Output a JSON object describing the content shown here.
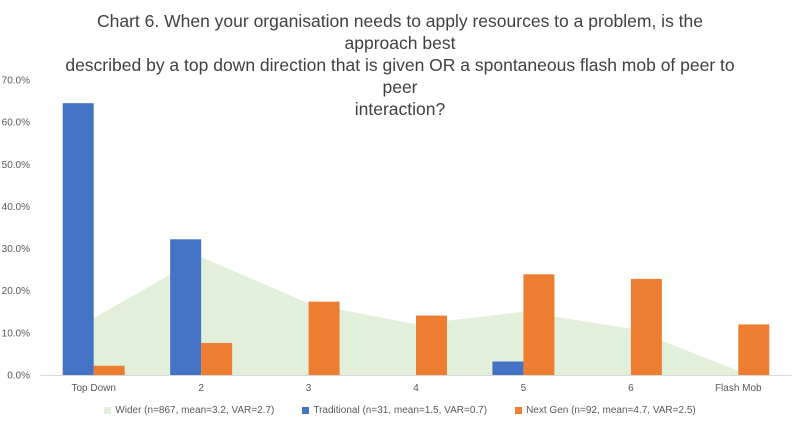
{
  "chart_data": {
    "type": "bar",
    "title": "Chart 6. When your organisation needs to apply resources to a problem, is the approach best described by a top down direction that is given OR a spontaneous flash mob of peer to peer interaction?",
    "title_lines": [
      "Chart 6. When your organisation needs to apply resources to a problem, is the approach best",
      "described by a top down direction that is given OR a spontaneous flash mob of peer to peer",
      "interaction?"
    ],
    "categories": [
      "Top Down",
      "2",
      "3",
      "4",
      "5",
      "6",
      "Flash Mob"
    ],
    "ylim": [
      0,
      70
    ],
    "yticks": [
      0,
      10,
      20,
      30,
      40,
      50,
      60,
      70
    ],
    "ytick_labels": [
      "0.0%",
      "10.0%",
      "20.0%",
      "30.0%",
      "40.0%",
      "50.0%",
      "60.0%",
      "70.0%"
    ],
    "series": [
      {
        "name": "Wider (n=867, mean=3.2, VAR=2.7)",
        "type": "area",
        "color": "#e2efda",
        "values": [
          13.5,
          28,
          17,
          12,
          15,
          11,
          1
        ]
      },
      {
        "name": "Traditional (n=31, mean=1.5, VAR=0.7)",
        "type": "bar",
        "color": "#4472c4",
        "values": [
          64.5,
          32.2,
          0,
          0,
          3.2,
          0,
          0
        ]
      },
      {
        "name": "Next Gen (n=92, mean=4.7, VAR=2.5)",
        "type": "bar",
        "color": "#ed7d31",
        "values": [
          2.2,
          7.6,
          17.4,
          14.1,
          23.9,
          22.8,
          12.0
        ]
      }
    ]
  }
}
